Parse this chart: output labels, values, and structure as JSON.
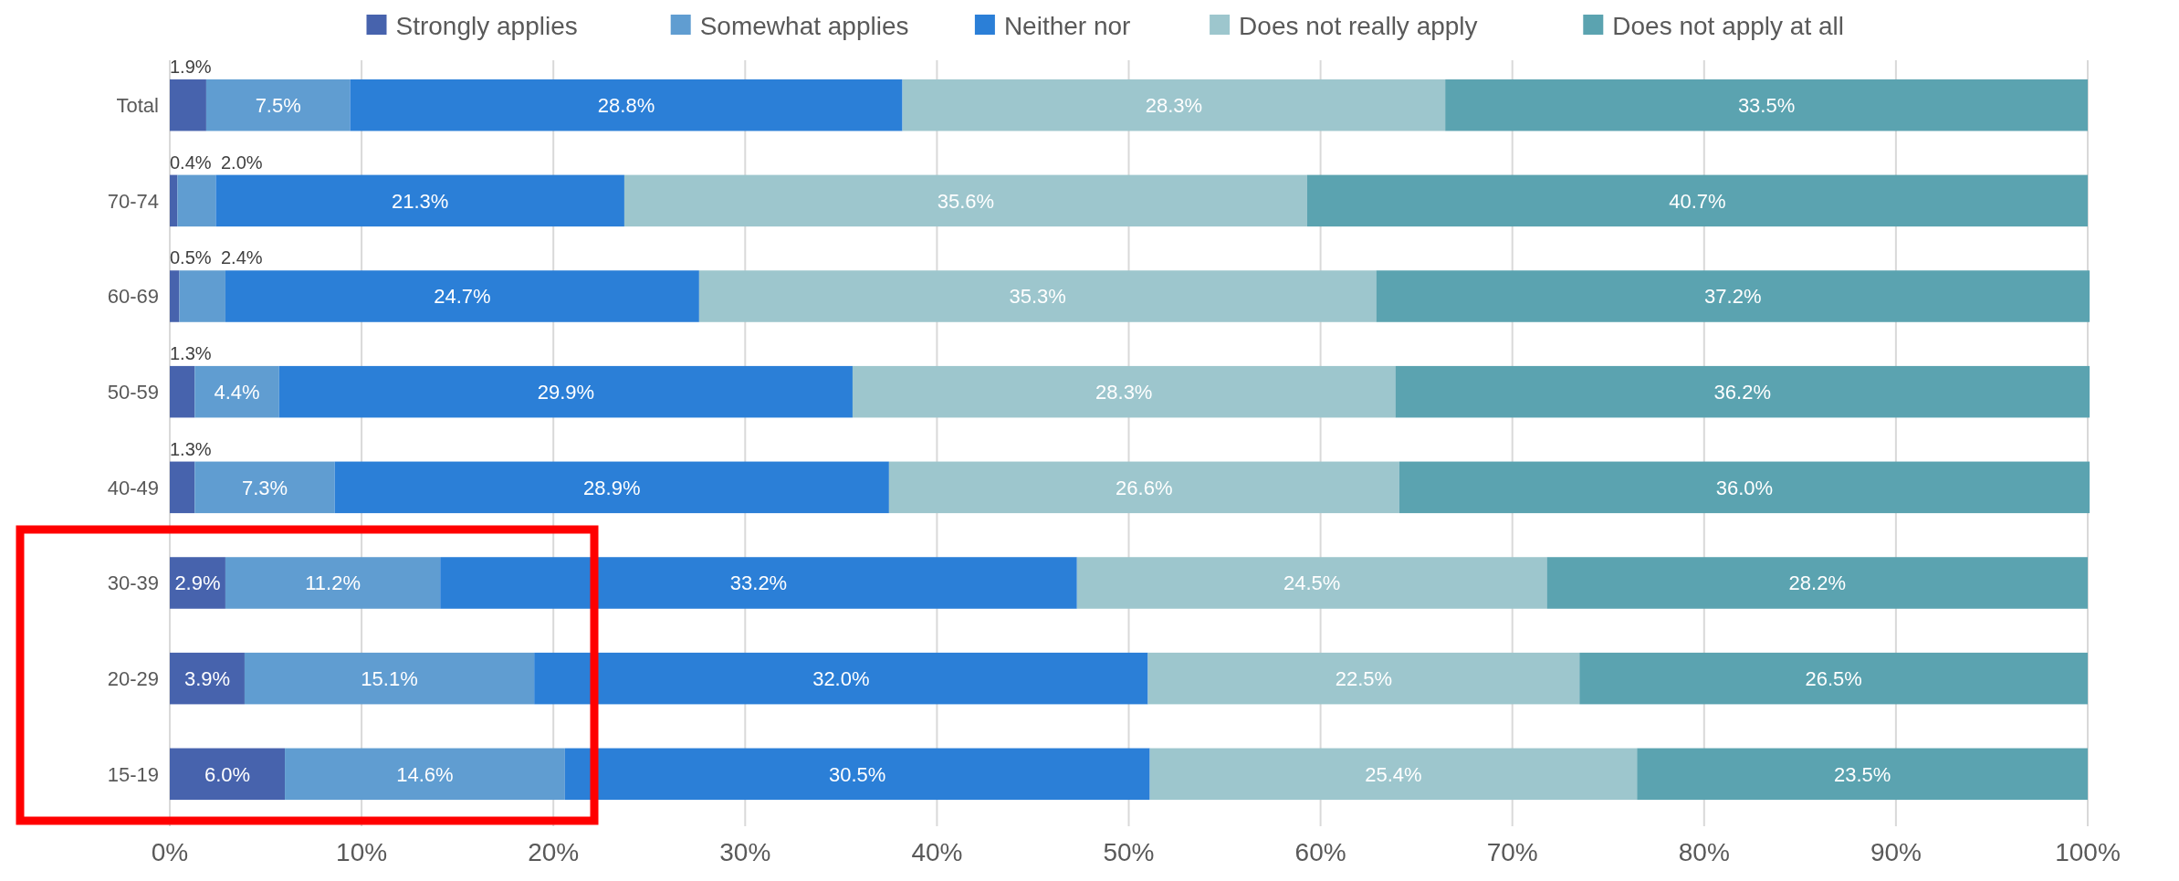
{
  "chart_data": {
    "type": "bar",
    "orientation": "horizontal",
    "stacked": true,
    "grid": "x",
    "legend": "top",
    "categories": [
      "Total",
      "70-74",
      "60-69",
      "50-59",
      "40-49",
      "30-39",
      "20-29",
      "15-19"
    ],
    "series": [
      {
        "name": "Strongly applies",
        "color": "#4763ad",
        "values": [
          1.9,
          0.4,
          0.5,
          1.3,
          1.3,
          2.9,
          3.9,
          6.0
        ],
        "value_labels": [
          "1.9%",
          "0.4%",
          "0.5%",
          "1.3%",
          "1.3%",
          "2.9%",
          "3.9%",
          "6.0%"
        ]
      },
      {
        "name": "Somewhat applies",
        "color": "#609dd1",
        "values": [
          7.5,
          2.0,
          2.4,
          4.4,
          7.3,
          11.2,
          15.1,
          14.6
        ],
        "value_labels": [
          "7.5%",
          "2.0%",
          "2.4%",
          "4.4%",
          "7.3%",
          "11.2%",
          "15.1%",
          "14.6%"
        ]
      },
      {
        "name": "Neither nor",
        "color": "#2b7fd7",
        "values": [
          28.8,
          21.3,
          24.7,
          29.9,
          28.9,
          33.2,
          32.0,
          30.5
        ],
        "value_labels": [
          "28.8%",
          "21.3%",
          "24.7%",
          "29.9%",
          "28.9%",
          "33.2%",
          "32.0%",
          "30.5%"
        ]
      },
      {
        "name": "Does not really apply",
        "color": "#9dc6cd",
        "values": [
          28.3,
          35.6,
          35.3,
          28.3,
          26.6,
          24.5,
          22.5,
          25.4
        ],
        "value_labels": [
          "28.3%",
          "35.6%",
          "35.3%",
          "28.3%",
          "26.6%",
          "24.5%",
          "22.5%",
          "25.4%"
        ]
      },
      {
        "name": "Does not apply at all",
        "color": "#5ba3b0",
        "values": [
          33.5,
          40.7,
          37.2,
          36.2,
          36.0,
          28.2,
          26.5,
          23.5
        ],
        "value_labels": [
          "33.5%",
          "40.7%",
          "37.2%",
          "36.2%",
          "36.0%",
          "28.2%",
          "26.5%",
          "23.5%"
        ]
      }
    ],
    "xlim": [
      0,
      100
    ],
    "xticks": [
      {
        "value": 0,
        "label": "0%"
      },
      {
        "value": 10,
        "label": "10%"
      },
      {
        "value": 20,
        "label": "20%"
      },
      {
        "value": 30,
        "label": "30%"
      },
      {
        "value": 40,
        "label": "40%"
      },
      {
        "value": 50,
        "label": "50%"
      },
      {
        "value": 60,
        "label": "60%"
      },
      {
        "value": 70,
        "label": "70%"
      },
      {
        "value": 80,
        "label": "80%"
      },
      {
        "value": 90,
        "label": "90%"
      },
      {
        "value": 100,
        "label": "100%"
      }
    ]
  }
}
